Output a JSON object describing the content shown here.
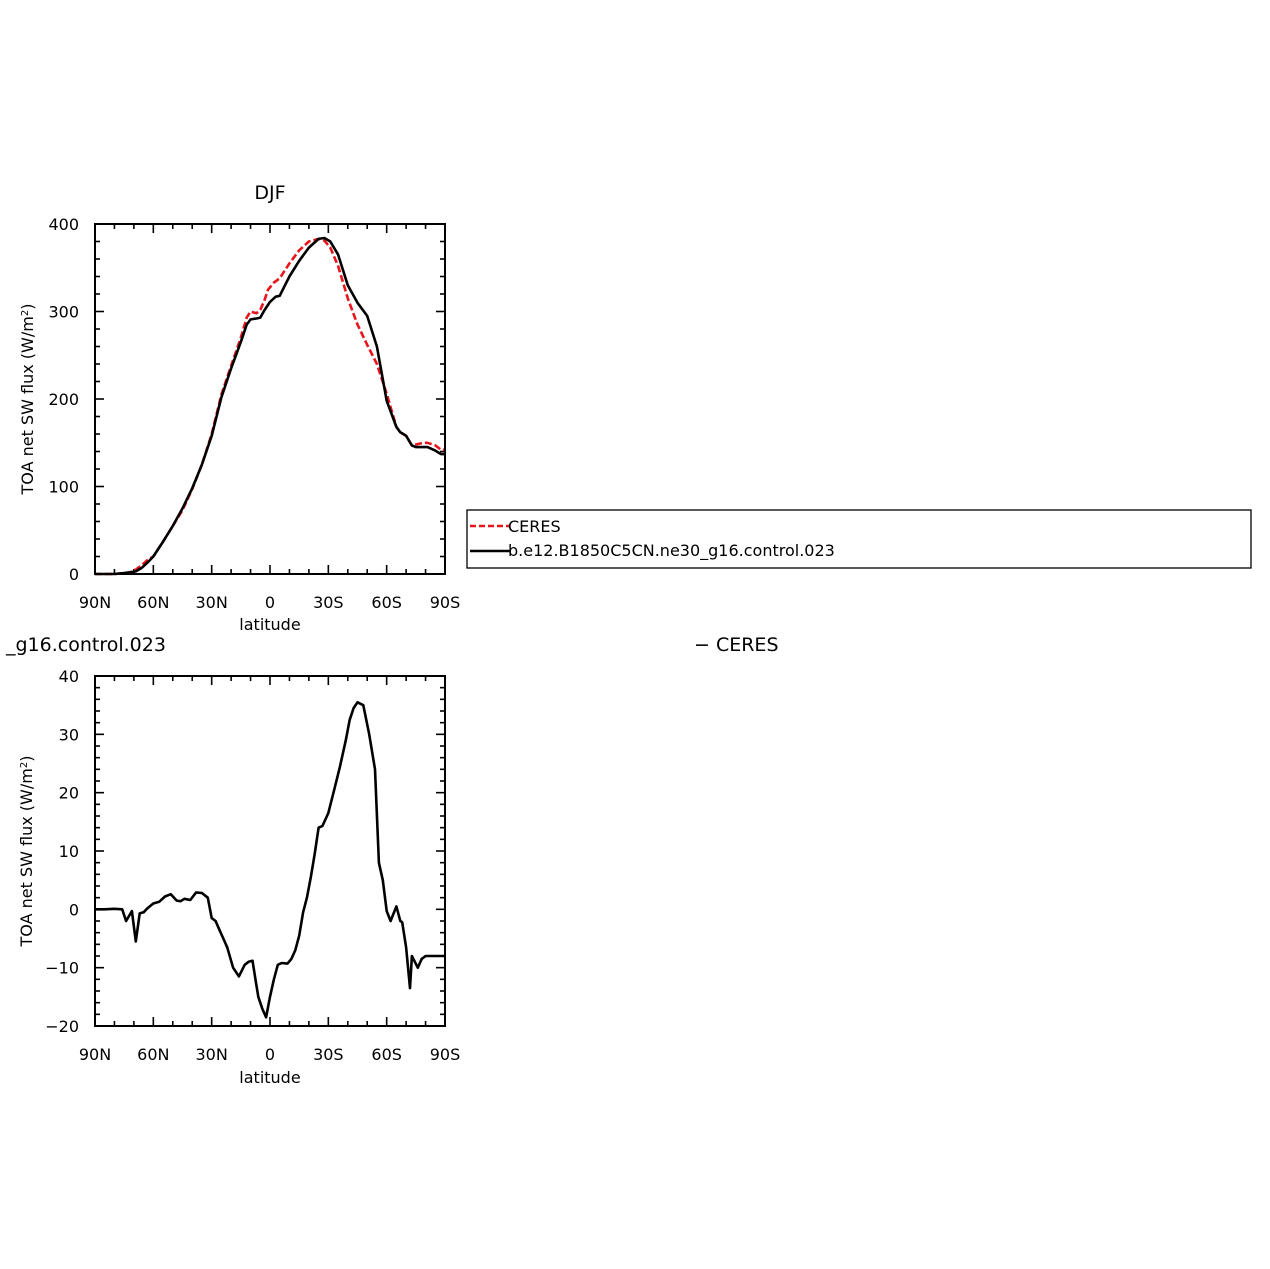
{
  "colors": {
    "ceres": "#e8141b",
    "model": "#000000",
    "axis": "#000000",
    "background": "#ffffff"
  },
  "legend": {
    "entries": [
      {
        "label": "CERES",
        "color": "#e8141b",
        "dash": true
      },
      {
        "label": "b.e12.B1850C5CN.ne30_g16.control.023",
        "color": "#000000",
        "dash": false
      }
    ]
  },
  "chart_data": [
    {
      "type": "line",
      "title": "DJF",
      "xlabel": "latitude",
      "ylabel_main": "TOA net SW flux (W/m",
      "ylabel_sup": "2",
      "ylabel_end": ")",
      "xlim": [
        90,
        -90
      ],
      "ylim": [
        0,
        400
      ],
      "xticks": [
        90,
        60,
        30,
        0,
        -30,
        -60,
        -90
      ],
      "xtick_labels": [
        "90N",
        "60N",
        "30N",
        "0",
        "30S",
        "60S",
        "90S"
      ],
      "yticks": [
        0,
        100,
        200,
        300,
        400
      ],
      "ytick_labels": [
        "0",
        "100",
        "200",
        "300",
        "400"
      ],
      "grid": false,
      "legend_position": "right",
      "series": [
        {
          "name": "CERES",
          "color": "#e8141b",
          "dash": true,
          "x": [
            90,
            85,
            80,
            75,
            72,
            69,
            66,
            63,
            60,
            55,
            50,
            45,
            40,
            35,
            30,
            25,
            20,
            15,
            12,
            10,
            7,
            5,
            3,
            1,
            -2,
            -5,
            -10,
            -15,
            -20,
            -25,
            -28,
            -31,
            -35,
            -40,
            -45,
            -50,
            -55,
            -60,
            -65,
            -67,
            -70,
            -73,
            -75,
            -79,
            -81,
            -85,
            -88,
            -90
          ],
          "y": [
            0,
            0,
            0,
            1,
            2,
            5,
            10,
            16,
            20,
            37,
            55,
            73,
            97,
            125,
            160,
            205,
            238,
            270,
            293,
            300,
            298,
            302,
            312,
            325,
            333,
            338,
            355,
            370,
            380,
            383,
            381,
            373,
            352,
            315,
            285,
            262,
            240,
            206,
            168,
            162,
            158,
            147,
            148,
            150,
            150,
            147,
            142,
            142
          ]
        },
        {
          "name": "b.e12.B1850C5CN.ne30_g16.control.023",
          "color": "#000000",
          "dash": false,
          "x": [
            90,
            85,
            80,
            75,
            72,
            69,
            66,
            63,
            60,
            55,
            50,
            45,
            40,
            35,
            30,
            25,
            20,
            15,
            12,
            10,
            7,
            5,
            3,
            0,
            -3,
            -5,
            -10,
            -15,
            -20,
            -25,
            -28,
            -31,
            -35,
            -40,
            -45,
            -50,
            -55,
            -60,
            -65,
            -67,
            -70,
            -73,
            -75,
            -79,
            -81,
            -85,
            -88,
            -90
          ],
          "y": [
            0,
            0,
            0,
            1,
            2,
            3,
            7,
            13,
            20,
            37,
            55,
            75,
            98,
            125,
            158,
            202,
            235,
            265,
            285,
            291,
            292,
            293,
            301,
            311,
            317,
            318,
            340,
            358,
            373,
            383,
            384,
            380,
            365,
            330,
            310,
            295,
            260,
            198,
            168,
            162,
            158,
            147,
            145,
            145,
            145,
            141,
            137,
            137
          ]
        }
      ]
    },
    {
      "type": "line",
      "title": "_g16.control.023",
      "subtitle": "− CERES",
      "xlabel": "latitude",
      "ylabel_main": "TOA net SW flux (W/m",
      "ylabel_sup": "2",
      "ylabel_end": ")",
      "xlim": [
        90,
        -90
      ],
      "ylim": [
        -20,
        40
      ],
      "xticks": [
        90,
        60,
        30,
        0,
        -30,
        -60,
        -90
      ],
      "xtick_labels": [
        "90N",
        "60N",
        "30N",
        "0",
        "30S",
        "60S",
        "90S"
      ],
      "yticks": [
        -20,
        -10,
        0,
        10,
        20,
        30,
        40
      ],
      "ytick_labels": [
        "−20",
        "−10",
        "0",
        "10",
        "20",
        "30",
        "40"
      ],
      "grid": false,
      "series": [
        {
          "color": "#000000",
          "dash": false,
          "x": [
            90,
            85,
            80,
            76,
            74,
            71,
            69,
            67,
            65,
            63,
            60,
            57,
            54,
            51,
            48,
            46,
            44,
            41,
            38,
            35,
            32,
            30,
            28,
            26,
            24,
            22,
            19,
            16,
            13,
            11,
            9,
            7,
            6,
            4,
            2,
            0,
            -2,
            -4,
            -6,
            -9,
            -11,
            -13,
            -15,
            -17,
            -19,
            -21,
            -23,
            -25,
            -27,
            -30,
            -33,
            -36,
            -39,
            -41,
            -43,
            -45,
            -48,
            -51,
            -54,
            -56,
            -58,
            -60,
            -62,
            -65,
            -67,
            -68,
            -70,
            -72,
            -73,
            -76,
            -78,
            -80,
            -82,
            -84,
            -86,
            -88,
            -90
          ],
          "y": [
            0,
            0,
            0.1,
            0,
            -2,
            -0.3,
            -5.5,
            -0.7,
            -0.5,
            0.2,
            1,
            1.3,
            2.2,
            2.6,
            1.5,
            1.4,
            1.8,
            1.6,
            2.9,
            2.8,
            2,
            -1.5,
            -2,
            -3.5,
            -5,
            -6.5,
            -10,
            -11.5,
            -9.5,
            -9,
            -8.8,
            -13,
            -15,
            -17,
            -18.5,
            -15,
            -12,
            -9.5,
            -9.2,
            -9.3,
            -8.5,
            -7,
            -4.5,
            -0.5,
            2,
            5.5,
            9.5,
            14,
            14.3,
            16.5,
            20.5,
            24.5,
            29,
            32.5,
            34.5,
            35.5,
            35,
            30,
            24,
            8,
            5,
            -0.3,
            -2,
            0.5,
            -2,
            -2.2,
            -6.5,
            -13.5,
            -8,
            -10,
            -8.5,
            -8,
            -8,
            -8,
            -8,
            -8,
            -8
          ]
        }
      ]
    }
  ]
}
